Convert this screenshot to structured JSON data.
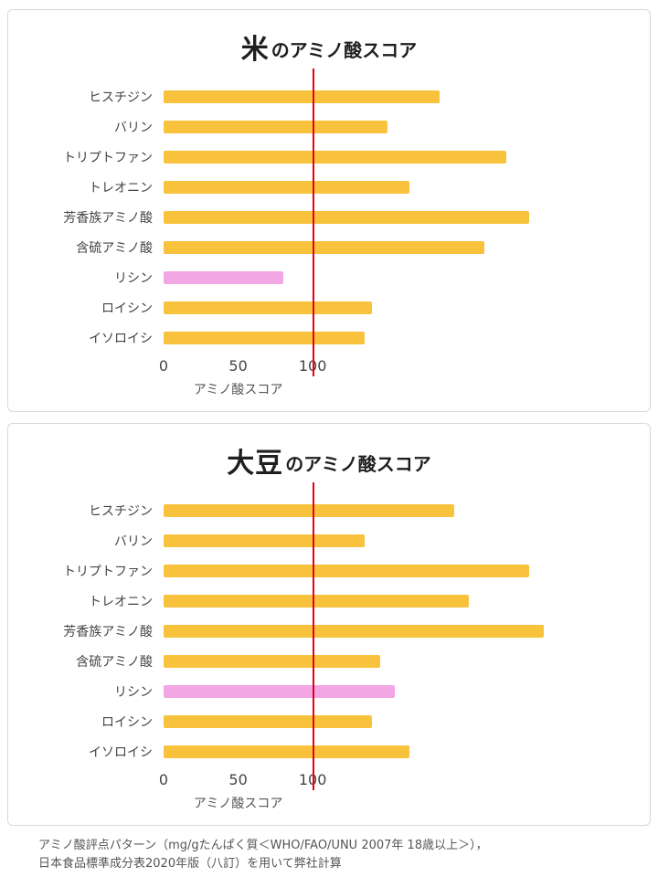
{
  "footer": {
    "line1": "アミノ酸評点パターン（mg/gたんぱく質＜WHO/FAO/UNU 2007年 18歳以上＞），",
    "line2": "日本食品標準成分表2020年版（八訂）を用いて弊社計算"
  },
  "colors": {
    "bar_default": "#f8c23c",
    "bar_highlight": "#f2a6e4",
    "reference_line": "#e60012"
  },
  "chart_data": [
    {
      "type": "bar",
      "orientation": "horizontal",
      "title": "米のアミノ酸スコア",
      "title_emphasis": "米",
      "title_suffix": "のアミノ酸スコア",
      "xlabel": "アミノ酸スコア",
      "xlim": [
        0,
        320
      ],
      "xticks": [
        0,
        50,
        100
      ],
      "reference_line_x": 100,
      "grid": false,
      "legend": "none",
      "categories": [
        "ヒスチジン",
        "バリン",
        "トリプトファン",
        "トレオニン",
        "芳香族アミノ酸",
        "含硫アミノ酸",
        "リシン",
        "ロイシン",
        "イソロイシ"
      ],
      "values": [
        185,
        150,
        230,
        165,
        245,
        215,
        80,
        140,
        135
      ],
      "bar_colors": [
        "#f8c23c",
        "#f8c23c",
        "#f8c23c",
        "#f8c23c",
        "#f8c23c",
        "#f8c23c",
        "#f2a6e4",
        "#f8c23c",
        "#f8c23c"
      ]
    },
    {
      "type": "bar",
      "orientation": "horizontal",
      "title": "大豆のアミノ酸スコア",
      "title_emphasis": "大豆",
      "title_suffix": "のアミノ酸スコア",
      "xlabel": "アミノ酸スコア",
      "xlim": [
        0,
        320
      ],
      "xticks": [
        0,
        50,
        100
      ],
      "reference_line_x": 100,
      "grid": false,
      "legend": "none",
      "categories": [
        "ヒスチジン",
        "バリン",
        "トリプトファン",
        "トレオニン",
        "芳香族アミノ酸",
        "含硫アミノ酸",
        "リシン",
        "ロイシン",
        "イソロイシ"
      ],
      "values": [
        195,
        135,
        245,
        205,
        255,
        145,
        155,
        140,
        165
      ],
      "bar_colors": [
        "#f8c23c",
        "#f8c23c",
        "#f8c23c",
        "#f8c23c",
        "#f8c23c",
        "#f8c23c",
        "#f2a6e4",
        "#f8c23c",
        "#f8c23c"
      ]
    }
  ]
}
